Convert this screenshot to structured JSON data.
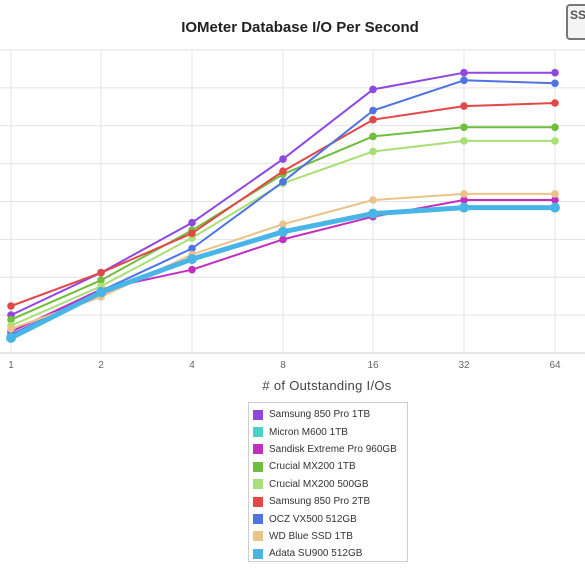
{
  "chart_data": {
    "type": "line",
    "title": "IOMeter Database I/O Per Second",
    "xlabel": "# of Outstanding I/Os",
    "ylabel": "",
    "categories": [
      "1",
      "2",
      "4",
      "8",
      "16",
      "32",
      "64"
    ],
    "grid": true,
    "legend_position": "bottom-center",
    "series": [
      {
        "name": "Samsung 850 Pro 1TB",
        "color": "#8f47e0",
        "values": [
          25,
          53,
          86,
          128,
          174,
          185,
          185
        ]
      },
      {
        "name": "Micron M600 1TB",
        "color": "#45d4c8",
        "values": [
          10,
          40,
          62,
          80,
          92,
          96,
          96
        ]
      },
      {
        "name": "Sandisk Extreme Pro 960GB",
        "color": "#c22fbf",
        "values": [
          14,
          42,
          55,
          75,
          90,
          101,
          101
        ]
      },
      {
        "name": "Crucial MX200 1TB",
        "color": "#6fbe3c",
        "values": [
          22,
          48,
          81,
          118,
          143,
          149,
          149
        ]
      },
      {
        "name": "Crucial MX200 500GB",
        "color": "#a8e077",
        "values": [
          18,
          44,
          76,
          112,
          133,
          140,
          140
        ]
      },
      {
        "name": "Samsung 850 Pro 2TB",
        "color": "#e24848",
        "values": [
          31,
          53,
          79,
          120,
          154,
          163,
          165
        ]
      },
      {
        "name": "OCZ VX500 512GB",
        "color": "#4f73e3",
        "values": [
          12,
          41,
          69,
          113,
          160,
          180,
          178
        ]
      },
      {
        "name": "WD Blue SSD 1TB",
        "color": "#ebc28a",
        "values": [
          16,
          37,
          65,
          85,
          101,
          105,
          105
        ]
      },
      {
        "name": "Adata SU900 512GB",
        "color": "#49b5e7",
        "values": [
          10,
          40,
          62,
          80,
          92,
          96,
          96
        ]
      }
    ]
  }
}
